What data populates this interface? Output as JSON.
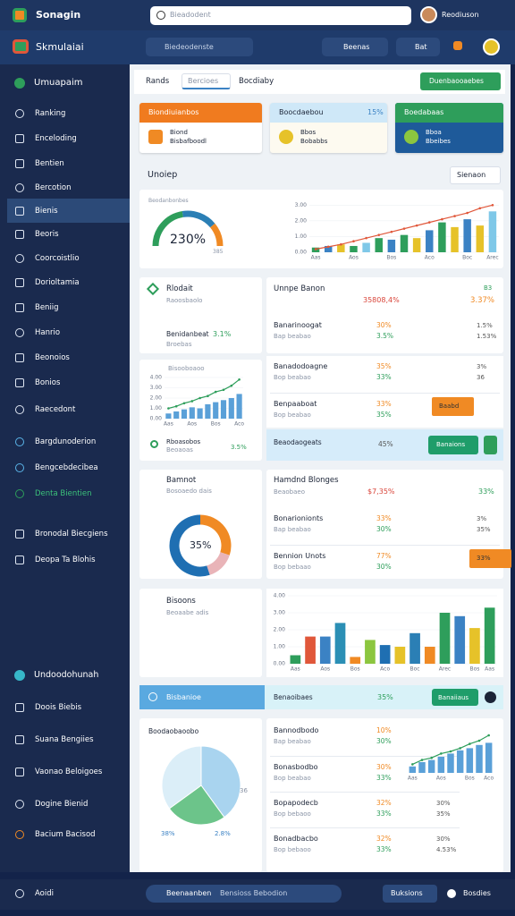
{
  "top": {
    "brand": "Sonagin",
    "search": "Bieadodent",
    "user": "Reodiuson"
  },
  "nav": {
    "brand": "Skmulaiai",
    "search": "Biedeodenste",
    "menu1": "Beenas",
    "menu2": "Bat"
  },
  "sidebar": {
    "home": "Umuapaim",
    "items": [
      "Ranking",
      "Enceloding",
      "Bentien",
      "Bercotion",
      "Bienis",
      "Beoris",
      "Coorcoistlio",
      "Dorioltamia",
      "Beniig",
      "Hanrio",
      "Beonoios",
      "Bonios",
      "Raecedont"
    ],
    "group2": [
      "Bargdunoderion",
      "Bengcebdecibea",
      "Denta Bientien"
    ],
    "group3": [
      "Bronodal Biecgiens",
      "Deopa Ta Blohis"
    ],
    "section": "Undoodohunah",
    "bottom": [
      "Doois Biebis",
      "Suana Bengiies",
      "Vaonao Beloigoes",
      "Dogine Bienid",
      "Bacium Bacisod"
    ]
  },
  "footer": {
    "user": "Aoidi",
    "search": "Beenaanben",
    "hint": "Bensioss Bebodion",
    "button1": "Buksions",
    "button2": "Bosdies"
  },
  "tabs": [
    "Rands",
    "Bercioes",
    "Bocdiaby"
  ],
  "action": "Duenbaooaebes",
  "cards": [
    {
      "title": "Biondiuianbos",
      "line1": "Biond",
      "line2": "Bisbafboodl"
    },
    {
      "title": "Boocdaebou",
      "badge": "15%",
      "line1": "Bbos",
      "line2": "Bobabbs"
    },
    {
      "title": "Boedabaas",
      "line1": "Bboa",
      "line2": "Bbeibes"
    }
  ],
  "overview": {
    "title": "Unoiep",
    "select": "Sienaon",
    "gauge_caption": "Beodanbonbes",
    "gauge_label": "230%",
    "gauge_note": "385",
    "chart": {
      "ylim": [
        0,
        3.3
      ],
      "yticks": [
        {
          "value": 0,
          "label": "0.00"
        },
        {
          "value": 1,
          "label": "1.00"
        },
        {
          "value": 2,
          "label": "2.00"
        },
        {
          "value": 3,
          "label": "3.00"
        }
      ],
      "categories": [
        "Aas",
        null,
        null,
        "Aos",
        null,
        null,
        "Bos",
        null,
        null,
        "Aco",
        null,
        null,
        "Boc",
        null,
        "Arec"
      ],
      "bars": [
        0.3,
        0.4,
        0.5,
        0.4,
        0.6,
        0.9,
        0.8,
        1.1,
        0.9,
        1.4,
        1.9,
        1.6,
        2.1,
        1.7,
        2.6
      ],
      "colors": [
        "#2e9e5b",
        "#3b82c4",
        "#e6c229",
        "#2e9e5b",
        "#7fc8e8",
        "#2e9e5b",
        "#3b82c4",
        "#2e9e5b",
        "#e6c229",
        "#3b82c4",
        "#2e9e5b",
        "#e6c229",
        "#3b82c4",
        "#e6c229",
        "#7fc8e8"
      ],
      "line": [
        0.2,
        0.35,
        0.5,
        0.7,
        0.9,
        1.1,
        1.3,
        1.5,
        1.7,
        1.9,
        2.1,
        2.3,
        2.5,
        2.8,
        3.0
      ],
      "line_color": "#e0573a"
    }
  },
  "kpi": {
    "title": "Rlodait",
    "sub": "Raoosbaolo",
    "metric": "Benidanbeat",
    "value": "3.1%",
    "note": "Broebas"
  },
  "trend": {
    "title": "Bisooboaoo",
    "ylim": [
      0,
      4
    ],
    "yticks": [
      {
        "value": 0,
        "label": "0.00"
      },
      {
        "value": 1,
        "label": "1.00"
      },
      {
        "value": 2,
        "label": "2.00"
      },
      {
        "value": 3,
        "label": "3.00"
      },
      {
        "value": 4,
        "label": "4.00"
      }
    ],
    "categories": [
      "Aas",
      null,
      null,
      "Aos",
      null,
      null,
      "Bos",
      null,
      null,
      "Aco"
    ],
    "bars": [
      0.5,
      0.7,
      0.9,
      1.1,
      1.0,
      1.4,
      1.6,
      1.8,
      2.0,
      2.4
    ],
    "bar_color": "#5aa0d8",
    "line": [
      1.0,
      1.2,
      1.5,
      1.7,
      2.0,
      2.2,
      2.6,
      2.8,
      3.2,
      3.8
    ],
    "line_color": "#2e9e5b",
    "legend": "Rboasobos",
    "legend_sub": "Beoaoas",
    "legend_value": "3.5%"
  },
  "donut": {
    "title": "Bamnot",
    "sub": "Bosoaedo dais",
    "center": "35%",
    "segments": [
      {
        "color": "#f08a24",
        "value": 30
      },
      {
        "color": "#e9b4b8",
        "value": 15
      },
      {
        "color": "#1f6fb2",
        "value": 55
      }
    ]
  },
  "bars2": {
    "title": "Bisoons",
    "sub": "Beoaabe adis",
    "ylim": [
      0,
      4
    ],
    "yticks": [
      {
        "value": 0,
        "label": "0.00"
      },
      {
        "value": 1,
        "label": "1.00"
      },
      {
        "value": 2,
        "label": "2.00"
      },
      {
        "value": 3,
        "label": "3.00"
      },
      {
        "value": 4,
        "label": "4.00"
      }
    ],
    "categories": [
      "Aas",
      null,
      "Aos",
      null,
      "Bos",
      null,
      "Aco",
      null,
      "Boc",
      null,
      "Arec",
      null,
      "Bos",
      "Aas"
    ],
    "values": [
      0.5,
      1.6,
      1.6,
      2.4,
      0.4,
      1.4,
      1.1,
      1.0,
      1.8,
      1.0,
      3.0,
      2.8,
      2.1,
      3.3
    ],
    "colors": [
      "#2e9e5b",
      "#e0573a",
      "#3b82c4",
      "#2b8fb5",
      "#f08a24",
      "#8cc63f",
      "#1f6fb2",
      "#e6c229",
      "#2b7fb5",
      "#f08a24",
      "#2e9e5b",
      "#3b82c4",
      "#e6c229",
      "#2e9e5b"
    ]
  },
  "accordion": {
    "title": "Bisbanioe",
    "row": "Benaoibaes",
    "value": "35%",
    "button": "Banaiiaus"
  },
  "pie": {
    "title": "Boodaobaoobo",
    "left": "38%",
    "right": "2.8%",
    "side": "36",
    "segments": [
      {
        "color": "#a9d4ef",
        "value": 40
      },
      {
        "color": "#6cc48a",
        "value": 25
      },
      {
        "color": "#dbeef8",
        "value": 35
      }
    ]
  },
  "table1": {
    "title": "Unnpe Banon",
    "badge": "B3",
    "a": "35808,4%",
    "b": "3.37%",
    "rows": [
      {
        "name": "Banarinoogat",
        "sub": "Bap beabao",
        "v1": "30%",
        "v2": "3.5%",
        "v3": "1.5%",
        "v4": "1.53%"
      }
    ]
  },
  "table2": {
    "rows": [
      {
        "name": "Banadodoagne",
        "sub": "Bop beabao",
        "v1": "35%",
        "v2": "33%",
        "v3": "3%",
        "v4": "36"
      },
      {
        "name": "Benpaaboat",
        "sub": "Bop beabao",
        "v1": "33%",
        "v2": "35%",
        "tag": "Baabd"
      }
    ]
  },
  "highlight": {
    "name": "Beaodaogeats",
    "value": "45%",
    "button": "Banaions"
  },
  "table3": {
    "title": "Hamdnd Blonges",
    "sub": "Beaobaeo",
    "a": "$7,35%",
    "b": "33%",
    "rows": [
      {
        "name": "Bonarionionts",
        "sub": "Bap beabao",
        "v1": "33%",
        "v2": "30%",
        "v3": "3%",
        "v4": "35%"
      },
      {
        "name": "Bennion Unots",
        "sub": "Bop bebaao",
        "v1": "77%",
        "v2": "30%",
        "tag": "33%"
      }
    ]
  },
  "table4": {
    "rows": [
      {
        "name": "Bannodbodo",
        "sub": "Bap beabao",
        "v1": "10%",
        "v2": "30%"
      },
      {
        "name": "Bonasbodbo",
        "sub": "Bop beabao",
        "v1": "30%",
        "v2": "33%"
      },
      {
        "name": "Bopapodecb",
        "sub": "Bop bebaoo",
        "v1": "32%",
        "v2": "33%",
        "v3": "30%",
        "v4": "35%"
      },
      {
        "name": "Bonadbacbo",
        "sub": "Bop bebaoo",
        "v1": "32%",
        "v2": "33%",
        "v3": "30%",
        "v4": "4.53%"
      }
    ],
    "chart": {
      "ylim": [
        0,
        4
      ],
      "categories": [
        "Aas",
        null,
        null,
        "Aos",
        null,
        null,
        "Bos",
        null,
        "Aco"
      ],
      "bars": [
        0.6,
        1.0,
        1.2,
        1.5,
        1.8,
        2.1,
        2.3,
        2.6,
        2.8
      ],
      "bar_color": "#5aa0d8",
      "line": [
        0.8,
        1.2,
        1.4,
        1.8,
        2.0,
        2.3,
        2.7,
        3.0,
        3.5
      ],
      "line_color": "#2e9e5b"
    }
  }
}
